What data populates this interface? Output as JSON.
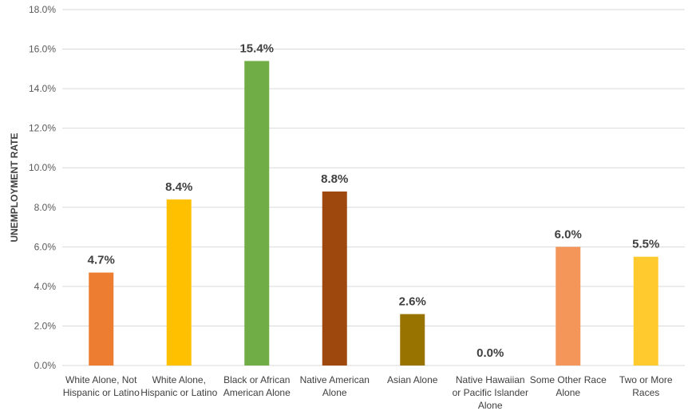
{
  "chart_data": {
    "type": "bar",
    "title": "",
    "xlabel": "",
    "ylabel": "UNEMPLOYMENT RATE",
    "ylim": [
      0,
      18
    ],
    "grid": true,
    "legend": "none",
    "yticks": [
      "0.0%",
      "2.0%",
      "4.0%",
      "6.0%",
      "8.0%",
      "10.0%",
      "12.0%",
      "14.0%",
      "16.0%",
      "18.0%"
    ],
    "categories": [
      [
        "White Alone, Not",
        "Hispanic or Latino"
      ],
      [
        "White Alone,",
        "Hispanic or Latino"
      ],
      [
        "Black or African",
        "American Alone"
      ],
      [
        "Native American",
        "Alone"
      ],
      [
        "Asian Alone"
      ],
      [
        "Native Hawaiian",
        "or Pacific Islander",
        "Alone"
      ],
      [
        "Some Other Race",
        "Alone"
      ],
      [
        "Two or More",
        "Races"
      ]
    ],
    "values": [
      4.7,
      8.4,
      15.4,
      8.8,
      2.6,
      0.0,
      6.0,
      5.5
    ],
    "data_labels": [
      "4.7%",
      "8.4%",
      "15.4%",
      "8.8%",
      "2.6%",
      "0.0%",
      "6.0%",
      "5.5%"
    ],
    "colors": [
      "#ED7D31",
      "#FFC000",
      "#70AD47",
      "#9E480E",
      "#997300",
      "#C55A11",
      "#F4965A",
      "#FFCA2E"
    ]
  }
}
